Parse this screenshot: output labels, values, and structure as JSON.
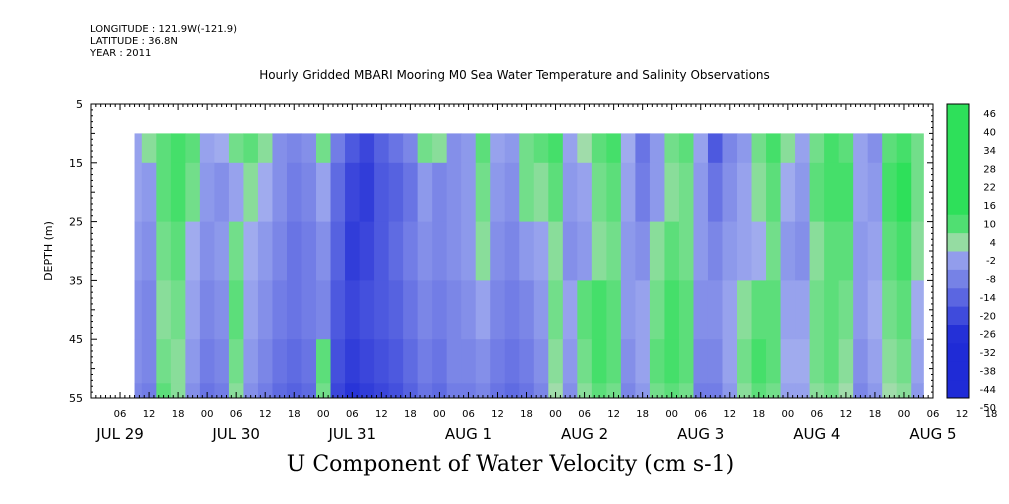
{
  "header": {
    "longitude": "LONGITUDE : 121.9W(-121.9)",
    "latitude": "LATITUDE : 36.8N",
    "year": "YEAR : 2011"
  },
  "chart_data": {
    "type": "heatmap",
    "title": "Hourly Gridded MBARI Mooring M0 Sea Water Temperature and Salinity Observations",
    "xlabel": "U Component of Water Velocity (cm s-1)",
    "ylabel": "DEPTH (m)",
    "x_range_hours": [
      0,
      174
    ],
    "x_start_label": "JUL 29 00:00",
    "ylim": [
      55,
      5
    ],
    "y_ticks": [
      5,
      15,
      25,
      35,
      45,
      55
    ],
    "x_hour_ticks": [
      "06",
      "12",
      "18",
      "00",
      "06",
      "12",
      "18",
      "00",
      "06",
      "12",
      "18",
      "00",
      "06",
      "12",
      "18",
      "00",
      "06",
      "12",
      "18",
      "00",
      "06",
      "12",
      "18",
      "00",
      "06",
      "12",
      "18",
      "00",
      "06",
      "12",
      "18",
      "00"
    ],
    "x_hour_tick_hours": [
      6,
      12,
      18,
      24,
      30,
      36,
      42,
      48,
      54,
      60,
      66,
      72,
      78,
      84,
      90,
      96,
      102,
      108,
      114,
      120,
      126,
      132,
      138,
      144,
      150,
      156,
      162,
      168,
      6,
      12,
      18,
      24
    ],
    "day_labels": [
      {
        "label": "JUL 29",
        "hour": 6
      },
      {
        "label": "JUL 30",
        "hour": 30
      },
      {
        "label": "JUL 31",
        "hour": 54
      },
      {
        "label": "AUG  1",
        "hour": 78
      },
      {
        "label": "AUG  2",
        "hour": 102
      },
      {
        "label": "AUG  3",
        "hour": 126
      },
      {
        "label": "AUG  4",
        "hour": 150
      },
      {
        "label": "AUG  5",
        "hour": 174
      }
    ],
    "data_extent": {
      "hour_start": 9,
      "hour_end": 172,
      "depth_min": 10,
      "depth_max": 55
    },
    "colorbar": {
      "levels": [
        -50,
        -44,
        -38,
        -32,
        -26,
        -20,
        -14,
        -8,
        -2,
        4,
        10,
        16,
        22,
        28,
        34,
        40,
        46
      ],
      "labels": [
        "46",
        "40",
        "34",
        "28",
        "22",
        "16",
        "10",
        "4",
        "-2",
        "-8",
        "-14",
        "-20",
        "-26",
        "-32",
        "-38",
        "-44",
        "-50"
      ],
      "color_negative": "#1f2bd6",
      "color_mid": "#a9b4f0",
      "color_positive": "#2ee05a"
    },
    "u_velocity_grid": {
      "depths": [
        10,
        20,
        30,
        40,
        50,
        55
      ],
      "hours": [
        9,
        12,
        15,
        18,
        21,
        24,
        27,
        30,
        33,
        36,
        39,
        42,
        45,
        48,
        51,
        54,
        57,
        60,
        63,
        66,
        69,
        72,
        75,
        78,
        81,
        84,
        87,
        90,
        93,
        96,
        99,
        102,
        105,
        108,
        111,
        114,
        117,
        120,
        123,
        126,
        129,
        132,
        135,
        138,
        141,
        144,
        147,
        150,
        153,
        156,
        159,
        162,
        165,
        168,
        171
      ],
      "values": [
        [
          -4,
          2,
          6,
          8,
          6,
          -4,
          -2,
          4,
          6,
          2,
          -8,
          -10,
          -8,
          4,
          -12,
          -20,
          -24,
          -18,
          -14,
          -10,
          4,
          2,
          -8,
          -6,
          6,
          -4,
          -6,
          4,
          6,
          8,
          -4,
          0,
          6,
          8,
          -2,
          -14,
          -6,
          4,
          6,
          -4,
          -20,
          -10,
          -6,
          4,
          8,
          2,
          -4,
          4,
          8,
          6,
          -4,
          -8,
          6,
          8,
          4
        ],
        [
          -4,
          -6,
          6,
          8,
          4,
          -6,
          -8,
          -4,
          2,
          -2,
          -8,
          -12,
          -10,
          -4,
          -16,
          -24,
          -26,
          -20,
          -18,
          -14,
          -6,
          -10,
          -8,
          -6,
          4,
          -6,
          -8,
          4,
          2,
          6,
          -6,
          -4,
          4,
          6,
          -4,
          -12,
          -6,
          2,
          4,
          -6,
          -14,
          -8,
          -4,
          2,
          6,
          -2,
          -6,
          6,
          8,
          8,
          -4,
          -6,
          8,
          12,
          4
        ],
        [
          -6,
          -8,
          4,
          6,
          -2,
          -8,
          -6,
          4,
          -2,
          -6,
          -10,
          -14,
          -12,
          -8,
          -18,
          -26,
          -24,
          -20,
          -16,
          -12,
          -8,
          -10,
          -8,
          -6,
          2,
          -8,
          -10,
          -6,
          -4,
          2,
          -8,
          -6,
          2,
          4,
          -6,
          -8,
          2,
          6,
          4,
          -6,
          -10,
          -6,
          -4,
          -2,
          4,
          -6,
          -8,
          2,
          6,
          6,
          -6,
          -4,
          6,
          8,
          2
        ],
        [
          -8,
          -10,
          2,
          4,
          -4,
          -10,
          -8,
          6,
          -4,
          -8,
          -12,
          -14,
          -12,
          -10,
          -20,
          -24,
          -22,
          -20,
          -18,
          -14,
          -10,
          -12,
          -10,
          -8,
          -4,
          -10,
          -12,
          -10,
          -6,
          4,
          -4,
          6,
          8,
          6,
          -6,
          -4,
          4,
          8,
          6,
          -8,
          -8,
          -4,
          2,
          6,
          6,
          -4,
          -4,
          4,
          6,
          4,
          -6,
          -2,
          4,
          6,
          -2
        ],
        [
          -8,
          -10,
          4,
          2,
          -6,
          -12,
          -10,
          4,
          -6,
          -10,
          -14,
          -16,
          -14,
          6,
          -22,
          -26,
          -24,
          -22,
          -20,
          -16,
          -12,
          -14,
          -10,
          -10,
          -8,
          -12,
          -14,
          -12,
          -8,
          2,
          -6,
          4,
          8,
          6,
          -8,
          -4,
          6,
          8,
          6,
          -10,
          -10,
          -4,
          4,
          8,
          6,
          -2,
          -2,
          4,
          6,
          2,
          -8,
          -4,
          2,
          4,
          -4
        ],
        [
          -10,
          -12,
          6,
          2,
          -8,
          -14,
          -12,
          2,
          -8,
          -12,
          -16,
          -18,
          -16,
          4,
          -24,
          -28,
          -26,
          -24,
          -22,
          -18,
          -14,
          -16,
          -12,
          -12,
          -10,
          -14,
          -16,
          -14,
          -10,
          0,
          -8,
          2,
          6,
          4,
          -10,
          -6,
          4,
          6,
          4,
          -12,
          -12,
          -6,
          2,
          6,
          4,
          -4,
          -4,
          2,
          4,
          0,
          -10,
          -6,
          0,
          2,
          -6
        ]
      ]
    }
  }
}
